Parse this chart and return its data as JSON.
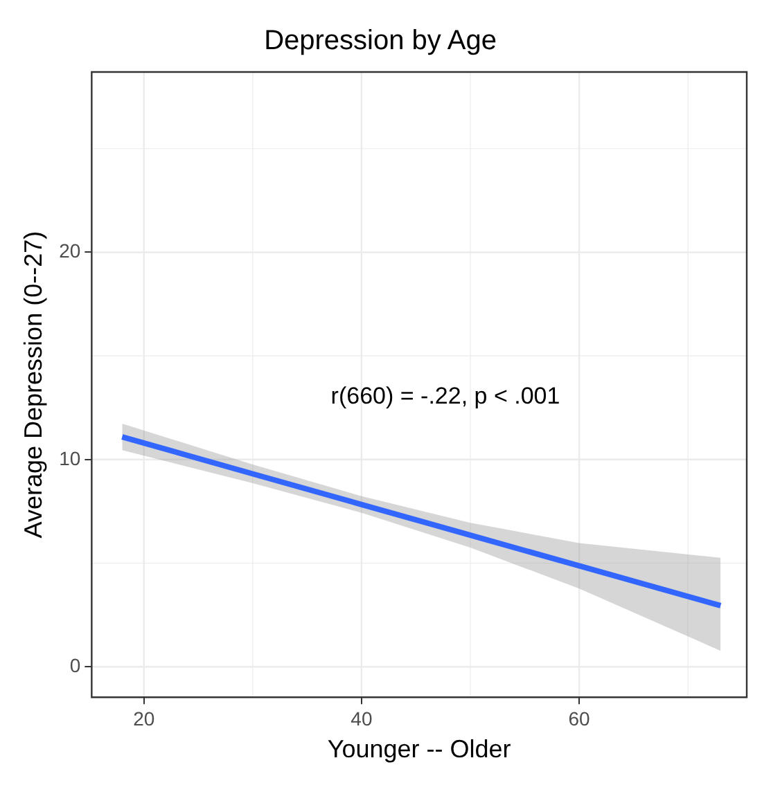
{
  "chart_data": {
    "type": "line",
    "title": "Depression by Age",
    "xlabel": "Younger -- Older",
    "ylabel": "Average Depression (0--27)",
    "annotations": [
      "r(660) = -.22, p < .001"
    ],
    "series": [
      {
        "color": "#3366ff",
        "x": [
          18,
          30,
          40,
          50,
          60,
          73
        ],
        "values": [
          11.09,
          9.31,
          7.83,
          6.35,
          4.87,
          2.95
        ],
        "lower": [
          10.45,
          8.86,
          7.43,
          5.75,
          3.77,
          0.77
        ],
        "upper": [
          11.73,
          9.76,
          8.23,
          6.95,
          5.97,
          5.26
        ]
      }
    ],
    "xlim": [
      15.2,
      75.4
    ],
    "ylim": [
      -1.47,
      28.7
    ],
    "xticks": [
      20,
      40,
      60
    ],
    "yticks": [
      0,
      10,
      20
    ],
    "grid": true,
    "legend": false,
    "marker": "none",
    "line_style": "solid"
  }
}
